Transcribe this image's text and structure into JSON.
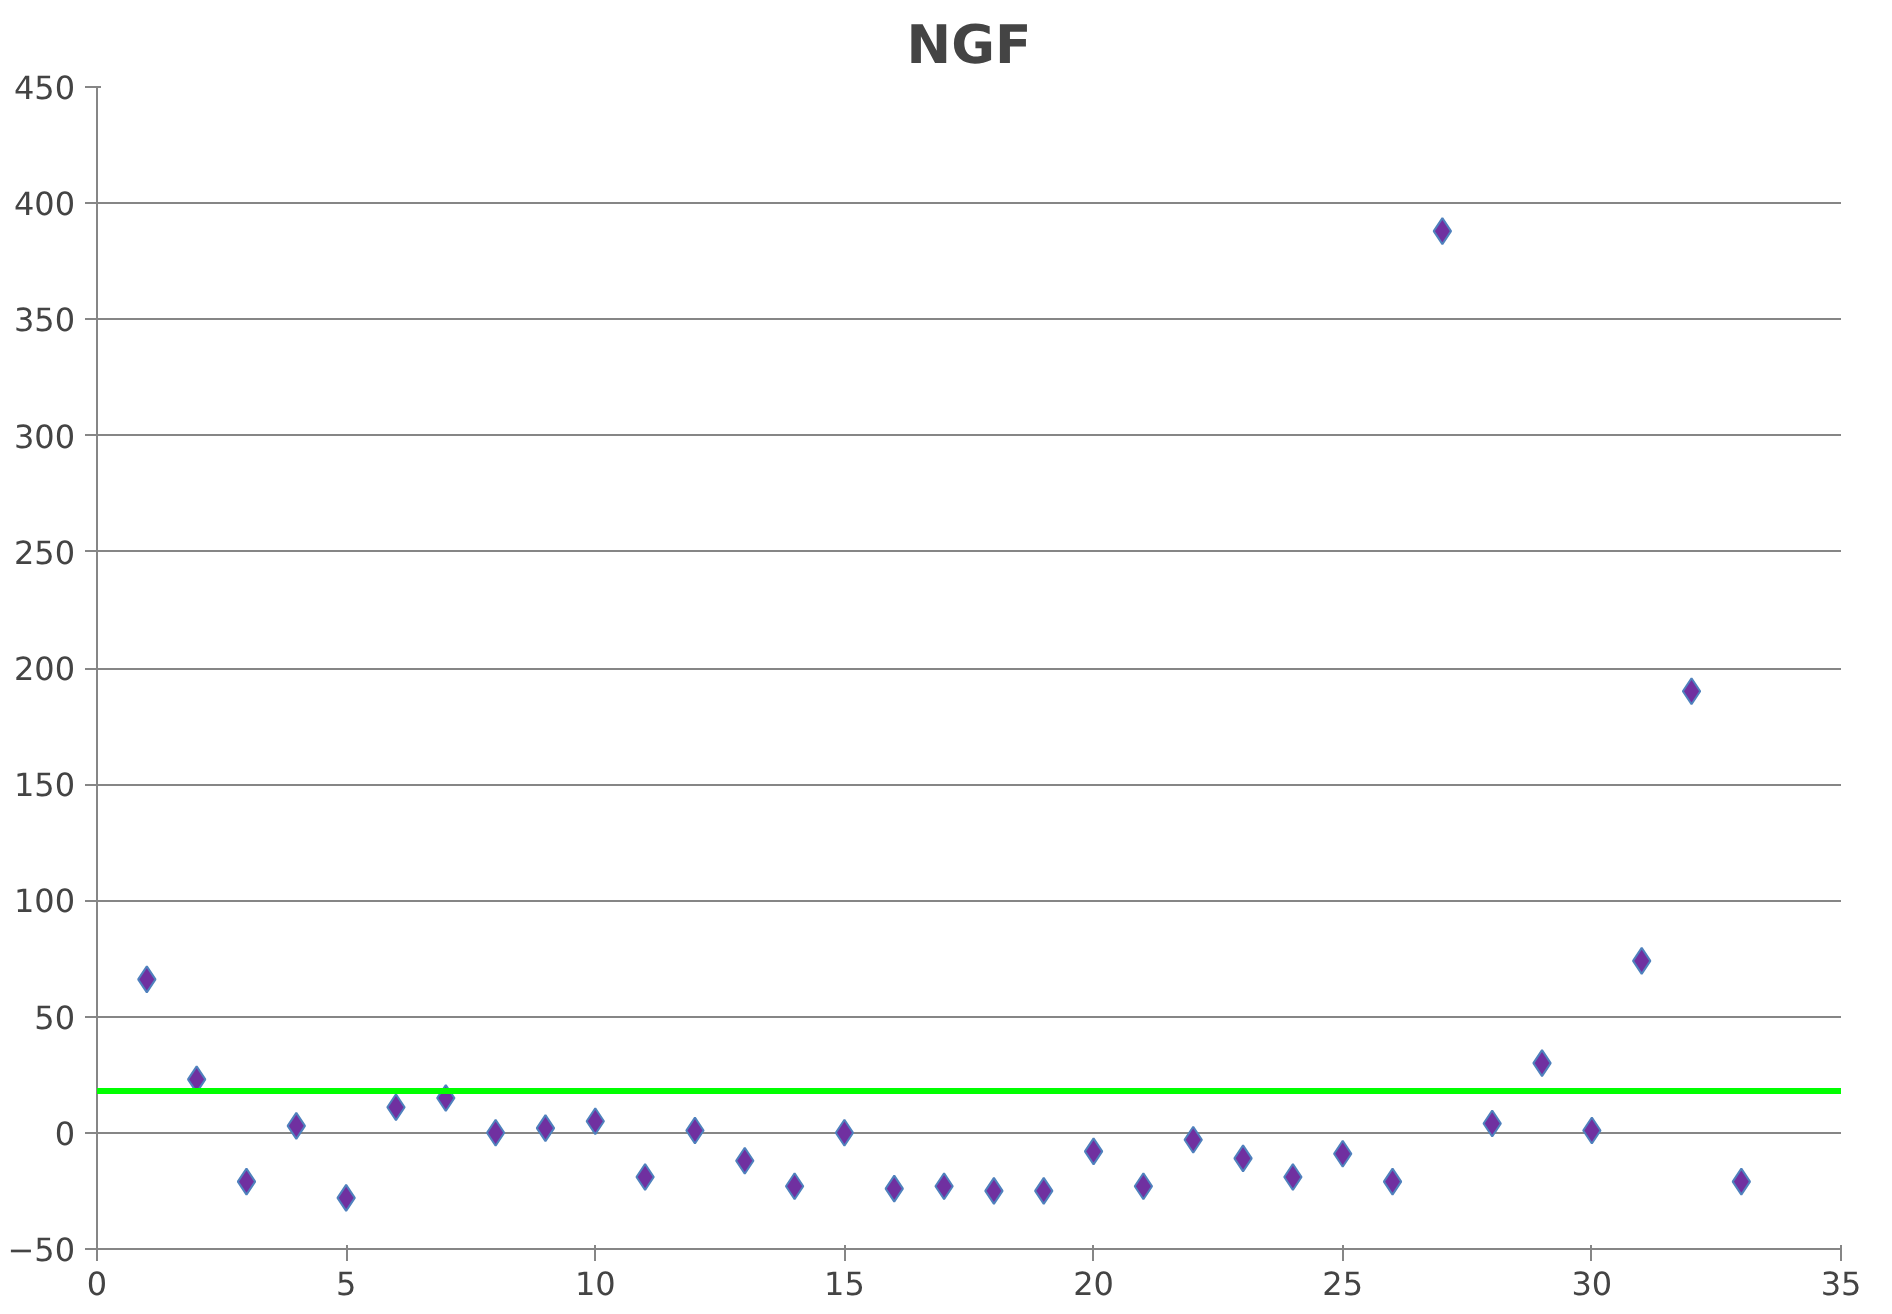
{
  "chart_data": {
    "type": "scatter",
    "title": "NGF",
    "x": [
      1,
      2,
      3,
      4,
      5,
      6,
      7,
      8,
      9,
      10,
      11,
      12,
      13,
      14,
      15,
      16,
      17,
      18,
      19,
      20,
      21,
      22,
      23,
      24,
      25,
      26,
      27,
      28,
      29,
      30,
      31,
      32,
      33
    ],
    "series": [
      {
        "color": "#7030a0",
        "values": [
          66,
          23,
          -21,
          3,
          -28,
          11,
          15,
          0,
          2,
          5,
          -19,
          1,
          -12,
          -23,
          0,
          -24,
          -23,
          -25,
          -25,
          -8,
          -23,
          -3,
          -11,
          -19,
          -9,
          -21,
          388,
          4,
          30,
          1,
          74,
          190,
          -21
        ]
      }
    ],
    "marker": "diamond",
    "xlim": [
      0,
      35
    ],
    "xticks": [
      0,
      5,
      10,
      15,
      20,
      25,
      30,
      35
    ],
    "ylim": [
      -50,
      450
    ],
    "yticks": [
      -50,
      0,
      50,
      100,
      150,
      200,
      250,
      300,
      350,
      400,
      450
    ],
    "grid": "y",
    "ref_lines": [
      {
        "axis": "y",
        "value": 18,
        "color": "#00ff00",
        "line_style": "solid"
      }
    ]
  }
}
